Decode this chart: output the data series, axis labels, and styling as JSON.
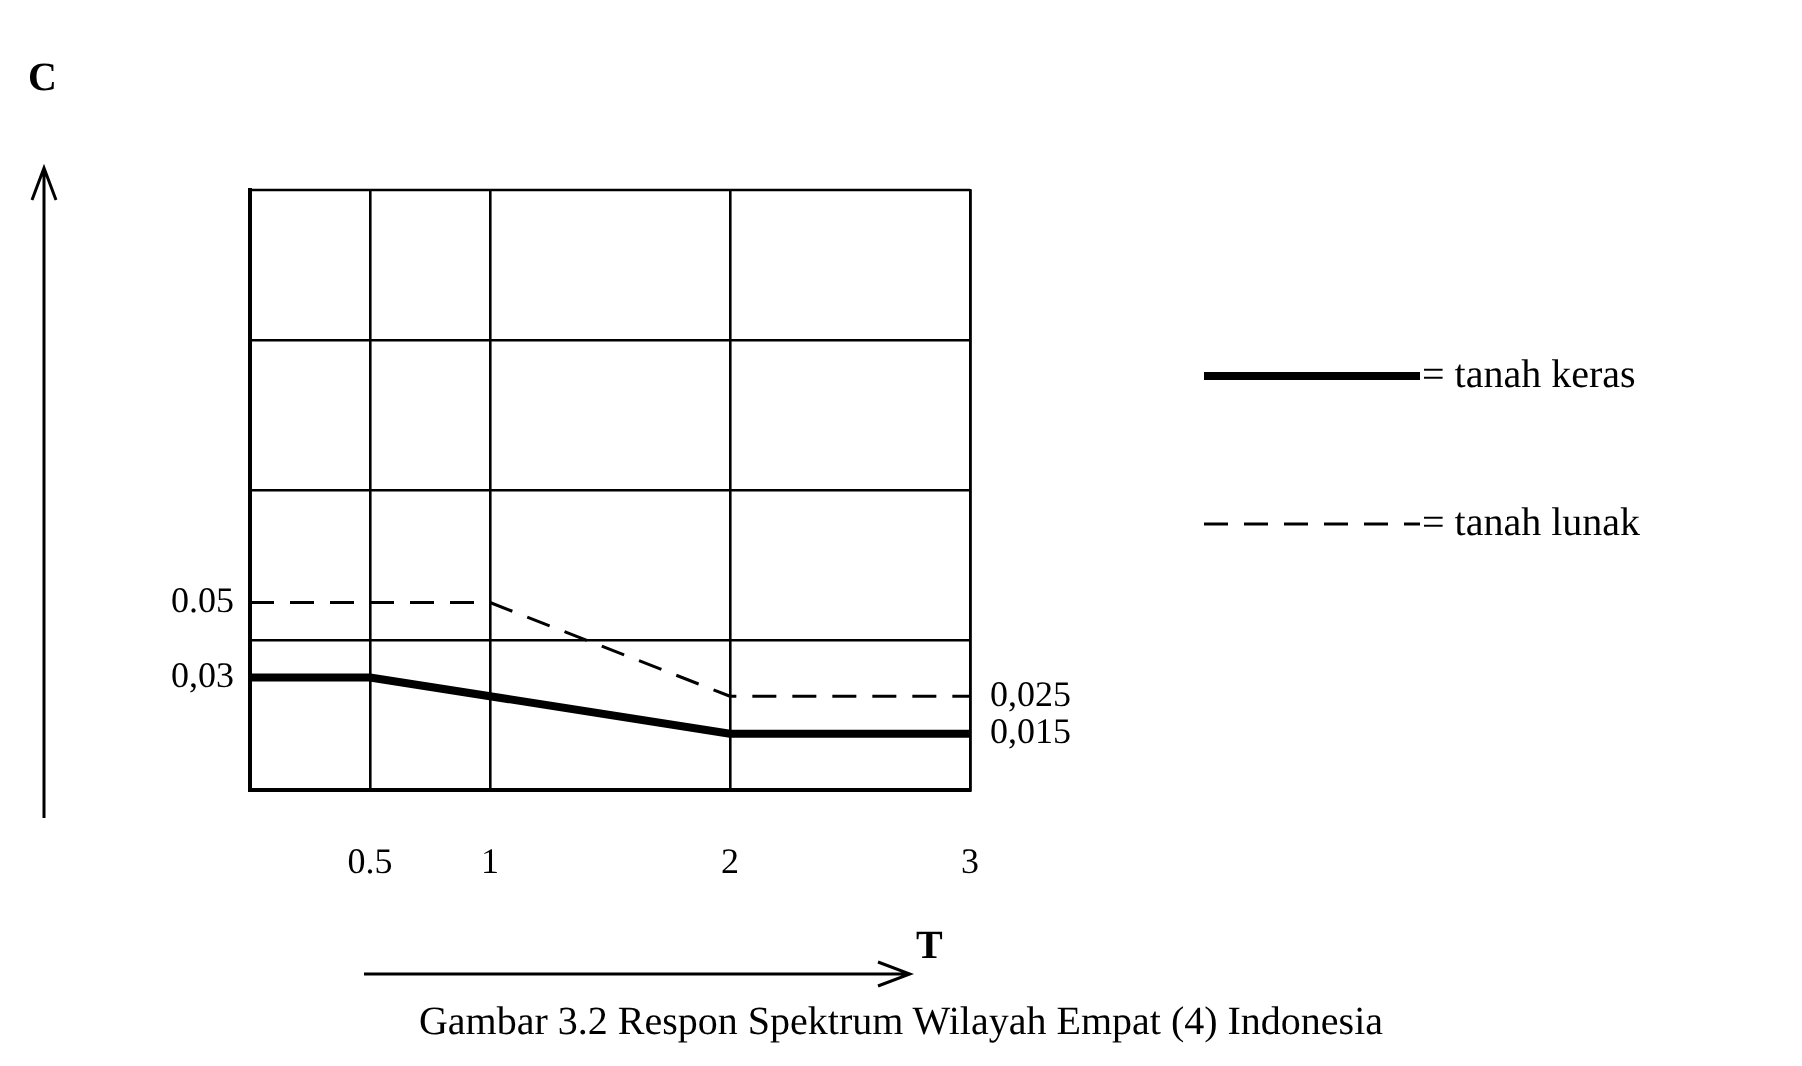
{
  "chart_data": {
    "type": "line",
    "xlabel": "T",
    "ylabel": "C",
    "annotations": [
      "Gambar 3.2 Respon Spektrum Wilayah Empat (4) Indonesia"
    ],
    "series": [
      {
        "name": "= tanah keras",
        "color": "#000000",
        "line_style": "solid",
        "x": [
          0,
          0.5,
          2,
          3
        ],
        "values": [
          0.03,
          0.03,
          0.015,
          0.015
        ]
      },
      {
        "name": "= tanah lunak",
        "color": "#000000",
        "line_style": "dashed",
        "x": [
          0,
          1,
          2,
          3
        ],
        "values": [
          0.05,
          0.05,
          0.025,
          0.025
        ]
      }
    ],
    "xlim": [
      0,
      3
    ],
    "xticks": [
      {
        "value": 0,
        "label": null
      },
      0.5,
      1,
      2,
      3
    ],
    "ylim": [
      0,
      0.16
    ],
    "yticks": [
      {
        "value": 0.04,
        "label": null
      },
      {
        "value": 0.08,
        "label": null
      },
      {
        "value": 0.12,
        "label": null
      },
      {
        "value": 0.05,
        "label": "0.05"
      },
      {
        "value": 0.03,
        "label": "0,03"
      }
    ],
    "y2lim": [
      0,
      0.16
    ],
    "y2ticks": [
      {
        "value": 0.025,
        "label": "0,025"
      },
      {
        "value": 0.015,
        "label": "0,015"
      }
    ],
    "grid": true,
    "legend": "right",
    "marker": "none"
  }
}
